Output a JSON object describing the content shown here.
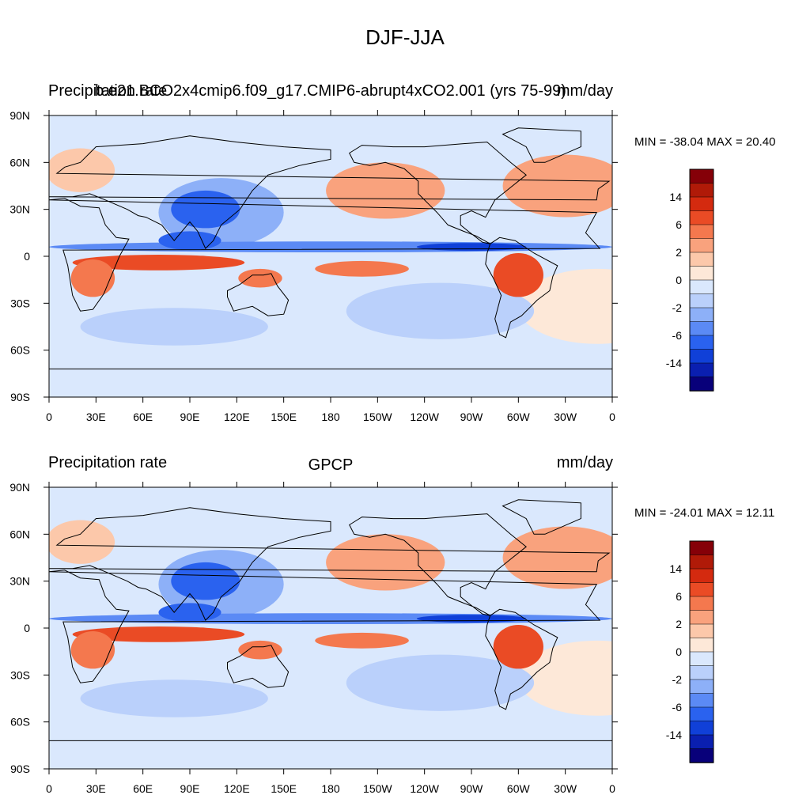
{
  "title": "DJF-JJA",
  "panels": [
    {
      "left_label": "Precipitation rate",
      "center_label": "b.e21.BCO2x4cmip6.f09_g17.CMIP6-abrupt4xCO2.001 (yrs 75-99)",
      "right_label": "mm/day",
      "stats": "MIN = -38.04 MAX =  20.40",
      "palette": [
        "#08007a",
        "#0a1fb0",
        "#1040d8",
        "#2a62ef",
        "#5b8af5",
        "#8db0f8",
        "#bad0fb",
        "#dae8fd",
        "#fde8d8",
        "#fcc8aa",
        "#f9a27d",
        "#f4784e",
        "#ea4b25",
        "#d42a0f",
        "#b01a08",
        "#850008"
      ],
      "colorbar_labels": [
        "14",
        "6",
        "2",
        "0",
        "-2",
        "-6",
        "-14"
      ]
    },
    {
      "left_label": "Precipitation rate",
      "center_label": "GPCP",
      "right_label": "mm/day",
      "stats": "MIN = -24.01 MAX =  12.11",
      "palette": [
        "#08007a",
        "#0a1fb0",
        "#1040d8",
        "#2a62ef",
        "#5b8af5",
        "#8db0f8",
        "#bad0fb",
        "#dae8fd",
        "#fde8d8",
        "#fcc8aa",
        "#f9a27d",
        "#f4784e",
        "#ea4b25",
        "#d42a0f",
        "#b01a08",
        "#850008"
      ],
      "colorbar_labels": [
        "14",
        "6",
        "2",
        "0",
        "-2",
        "-6",
        "-14"
      ]
    }
  ],
  "x_ticks": [
    "0",
    "30E",
    "60E",
    "90E",
    "120E",
    "150E",
    "180",
    "150W",
    "120W",
    "90W",
    "60W",
    "30W",
    "0"
  ],
  "y_ticks": [
    "90N",
    "60N",
    "30N",
    "0",
    "30S",
    "60S",
    "90S"
  ]
}
